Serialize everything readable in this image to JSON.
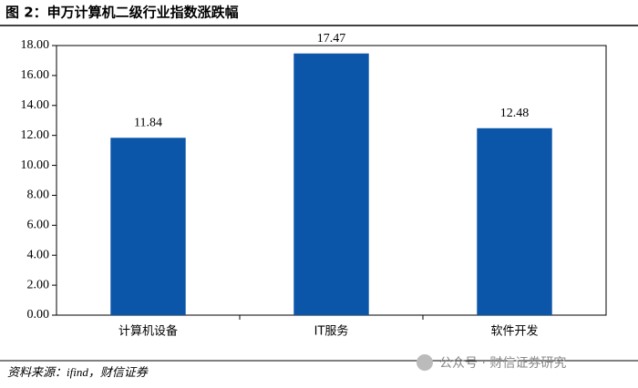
{
  "chart_data": {
    "type": "bar",
    "title": "图 2：申万计算机二级行业指数涨跌幅",
    "categories": [
      "计算机设备",
      "IT服务",
      "软件开发"
    ],
    "values": [
      11.84,
      17.47,
      12.48
    ],
    "color": "#0b56a8",
    "ylim": [
      0,
      18
    ],
    "yticks": [
      {
        "value": 0,
        "label": "0.00"
      },
      {
        "value": 2,
        "label": "2.00"
      },
      {
        "value": 4,
        "label": "4.00"
      },
      {
        "value": 6,
        "label": "6.00"
      },
      {
        "value": 8,
        "label": "8.00"
      },
      {
        "value": 10,
        "label": "10.00"
      },
      {
        "value": 12,
        "label": "12.00"
      },
      {
        "value": 14,
        "label": "14.00"
      },
      {
        "value": 16,
        "label": "16.00"
      },
      {
        "value": 18,
        "label": "18.00"
      }
    ],
    "grid": false,
    "source": "资料来源：ifind，财信证券",
    "watermark": "公众号 · 财信证券研究"
  }
}
